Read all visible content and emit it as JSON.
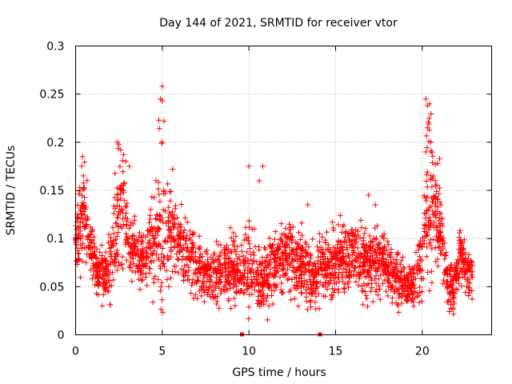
{
  "chart_data": {
    "type": "scatter",
    "title": "Day 144 of 2021, SRMTID for receiver vtor",
    "xlabel": "GPS time / hours",
    "ylabel": "SRMTID / TECUs",
    "xlim": [
      0,
      24
    ],
    "ylim": [
      0,
      0.3
    ],
    "x_ticks": [
      0,
      5,
      10,
      15,
      20
    ],
    "x_tick_labels": [
      "0",
      "5",
      "10",
      "15",
      "20"
    ],
    "y_ticks": [
      0,
      0.05,
      0.1,
      0.15,
      0.2,
      0.25,
      0.3
    ],
    "y_tick_labels": [
      "0",
      "0.05",
      "0.1",
      "0.15",
      "0.2",
      "0.25",
      "0.3"
    ],
    "grid": true,
    "marker": "+",
    "series_color": "#ff0000",
    "gap_markers_x": [
      9.6,
      14.1
    ],
    "x_range_data": [
      0,
      22.9
    ],
    "profile": {
      "x": [
        0,
        0.3,
        0.5,
        0.8,
        1.2,
        1.6,
        2.0,
        2.4,
        2.7,
        3.0,
        3.4,
        3.8,
        4.2,
        4.6,
        5.0,
        5.3,
        5.7,
        6.2,
        6.6,
        7.0,
        7.5,
        8.0,
        8.5,
        9.0,
        9.5,
        10.0,
        10.5,
        11.0,
        11.5,
        12.0,
        12.5,
        13.0,
        13.5,
        14.0,
        14.5,
        15.0,
        15.5,
        16.0,
        16.5,
        17.0,
        17.5,
        18.0,
        18.5,
        19.0,
        19.5,
        20.0,
        20.3,
        20.6,
        20.9,
        21.2,
        21.5,
        21.8,
        22.2,
        22.5,
        22.9
      ],
      "center": [
        0.1,
        0.12,
        0.13,
        0.09,
        0.07,
        0.06,
        0.075,
        0.12,
        0.13,
        0.1,
        0.085,
        0.08,
        0.09,
        0.1,
        0.12,
        0.11,
        0.1,
        0.09,
        0.08,
        0.07,
        0.065,
        0.06,
        0.065,
        0.07,
        0.06,
        0.07,
        0.06,
        0.06,
        0.07,
        0.08,
        0.08,
        0.07,
        0.06,
        0.065,
        0.07,
        0.075,
        0.08,
        0.085,
        0.08,
        0.075,
        0.08,
        0.07,
        0.06,
        0.05,
        0.05,
        0.08,
        0.15,
        0.13,
        0.12,
        0.09,
        0.05,
        0.05,
        0.08,
        0.07,
        0.06
      ],
      "spread": [
        0.015,
        0.05,
        0.04,
        0.025,
        0.02,
        0.02,
        0.03,
        0.05,
        0.06,
        0.03,
        0.025,
        0.025,
        0.03,
        0.05,
        0.08,
        0.05,
        0.03,
        0.03,
        0.03,
        0.025,
        0.025,
        0.025,
        0.025,
        0.03,
        0.025,
        0.04,
        0.03,
        0.03,
        0.03,
        0.03,
        0.03,
        0.03,
        0.03,
        0.03,
        0.03,
        0.03,
        0.03,
        0.03,
        0.03,
        0.03,
        0.03,
        0.025,
        0.025,
        0.02,
        0.02,
        0.04,
        0.08,
        0.05,
        0.04,
        0.03,
        0.02,
        0.025,
        0.025,
        0.02,
        0.02
      ]
    },
    "highlights": [
      {
        "x": 0.4,
        "y": 0.185
      },
      {
        "x": 0.35,
        "y": 0.175
      },
      {
        "x": 0.45,
        "y": 0.165
      },
      {
        "x": 2.4,
        "y": 0.2
      },
      {
        "x": 2.5,
        "y": 0.198
      },
      {
        "x": 2.6,
        "y": 0.192
      },
      {
        "x": 2.9,
        "y": 0.18
      },
      {
        "x": 3.1,
        "y": 0.175
      },
      {
        "x": 4.8,
        "y": 0.223
      },
      {
        "x": 4.9,
        "y": 0.245
      },
      {
        "x": 5.0,
        "y": 0.258
      },
      {
        "x": 5.0,
        "y": 0.243
      },
      {
        "x": 5.1,
        "y": 0.222
      },
      {
        "x": 5.0,
        "y": 0.2
      },
      {
        "x": 5.6,
        "y": 0.172
      },
      {
        "x": 10.0,
        "y": 0.175
      },
      {
        "x": 10.8,
        "y": 0.175
      },
      {
        "x": 10.6,
        "y": 0.16
      },
      {
        "x": 13.4,
        "y": 0.135
      },
      {
        "x": 16.9,
        "y": 0.145
      },
      {
        "x": 17.3,
        "y": 0.135
      },
      {
        "x": 20.2,
        "y": 0.245
      },
      {
        "x": 20.3,
        "y": 0.238
      },
      {
        "x": 20.4,
        "y": 0.225
      },
      {
        "x": 20.3,
        "y": 0.215
      },
      {
        "x": 20.5,
        "y": 0.2
      },
      {
        "x": 20.2,
        "y": 0.19
      },
      {
        "x": 21.0,
        "y": 0.183
      },
      {
        "x": 20.9,
        "y": 0.178
      }
    ]
  }
}
